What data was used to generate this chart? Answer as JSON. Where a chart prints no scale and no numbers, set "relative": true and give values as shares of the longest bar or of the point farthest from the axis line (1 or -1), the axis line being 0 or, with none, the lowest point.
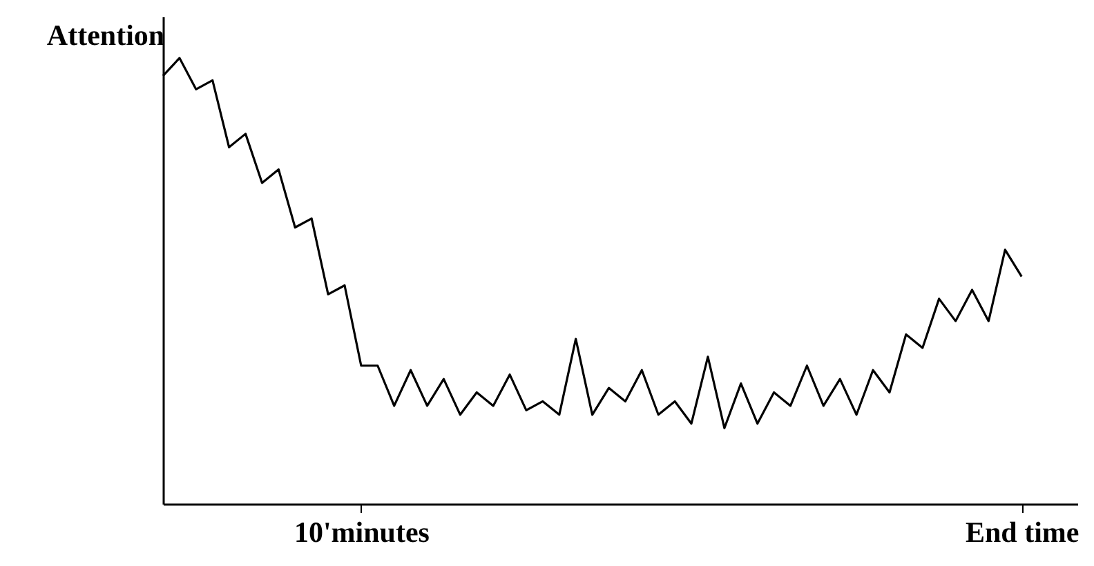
{
  "chart_data": {
    "type": "line",
    "ylabel": "Attention",
    "relative": true,
    "marker": "none",
    "line_style": "solid",
    "categories": [
      null,
      null,
      null,
      null,
      null,
      null,
      null,
      null,
      null,
      null,
      null,
      null,
      "10'minutes",
      null,
      null,
      null,
      null,
      null,
      null,
      null,
      null,
      null,
      null,
      null,
      null,
      null,
      null,
      null,
      null,
      null,
      null,
      null,
      null,
      null,
      null,
      null,
      null,
      null,
      null,
      null,
      null,
      null,
      null,
      null,
      null,
      null,
      null,
      null,
      null,
      null,
      null,
      null,
      "End time"
    ],
    "series": [
      {
        "color": "#000000",
        "values": [
          0.96,
          1,
          0.93,
          0.95,
          0.8,
          0.83,
          0.72,
          0.75,
          0.62,
          0.64,
          0.47,
          0.49,
          0.31,
          0.31,
          0.22,
          0.3,
          0.22,
          0.28,
          0.2,
          0.25,
          0.22,
          0.29,
          0.21,
          0.23,
          0.2,
          0.37,
          0.2,
          0.26,
          0.23,
          0.3,
          0.2,
          0.23,
          0.18,
          0.33,
          0.17,
          0.27,
          0.18,
          0.25,
          0.22,
          0.31,
          0.22,
          0.28,
          0.2,
          0.3,
          0.25,
          0.38,
          0.35,
          0.46,
          0.41,
          0.48,
          0.41,
          0.57,
          0.51
        ]
      }
    ]
  }
}
